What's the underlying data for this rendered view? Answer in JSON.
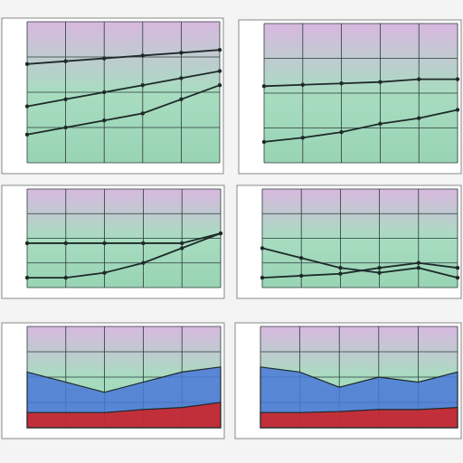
{
  "chart_data": [
    {
      "type": "line",
      "categories": [
        null,
        null,
        null,
        null,
        null,
        null
      ],
      "ylim": [
        0,
        100
      ],
      "yticks": [
        0,
        25,
        50,
        75,
        100
      ],
      "grid": true,
      "series": [
        {
          "color": "#1e2a2a",
          "values": [
            20,
            25,
            30,
            35,
            45,
            55
          ]
        },
        {
          "color": "#1e2a2a",
          "values": [
            40,
            45,
            50,
            55,
            60,
            65
          ]
        },
        {
          "color": "#1e2a2a",
          "values": [
            70,
            72,
            74,
            76,
            78,
            80
          ]
        }
      ]
    },
    {
      "type": "line",
      "categories": [
        null,
        null,
        null,
        null,
        null,
        null
      ],
      "ylim": [
        0,
        100
      ],
      "yticks": [
        0,
        25,
        50,
        75,
        100
      ],
      "grid": true,
      "series": [
        {
          "color": "#1e2a2a",
          "values": [
            15,
            18,
            22,
            28,
            32,
            38
          ]
        },
        {
          "color": "#1e2a2a",
          "values": [
            55,
            56,
            57,
            58,
            60,
            60
          ]
        }
      ]
    },
    {
      "type": "line",
      "categories": [
        null,
        null,
        null,
        null,
        null,
        null
      ],
      "ylim": [
        0,
        100
      ],
      "yticks": [
        0,
        25,
        50,
        75,
        100
      ],
      "grid": true,
      "series": [
        {
          "color": "#1e2a2a",
          "values": [
            45,
            45,
            45,
            45,
            45,
            55
          ]
        },
        {
          "color": "#1e2a2a",
          "values": [
            10,
            10,
            15,
            25,
            40,
            55
          ]
        }
      ]
    },
    {
      "type": "line",
      "categories": [
        null,
        null,
        null,
        null,
        null,
        null
      ],
      "ylim": [
        0,
        100
      ],
      "yticks": [
        0,
        25,
        50,
        75,
        100
      ],
      "grid": true,
      "series": [
        {
          "color": "#1e2a2a",
          "values": [
            40,
            30,
            20,
            15,
            20,
            10
          ]
        },
        {
          "color": "#1e2a2a",
          "values": [
            10,
            12,
            14,
            20,
            25,
            20
          ]
        }
      ]
    },
    {
      "type": "area",
      "categories": [
        null,
        null,
        null,
        null,
        null,
        null
      ],
      "ylim": [
        0,
        100
      ],
      "yticks": [
        0,
        25,
        50,
        75,
        100
      ],
      "grid": true,
      "series": [
        {
          "color": "#4a78d8",
          "values": [
            55,
            45,
            35,
            45,
            55,
            60
          ]
        },
        {
          "color": "#d42020",
          "values": [
            15,
            15,
            15,
            18,
            20,
            25
          ]
        }
      ]
    },
    {
      "type": "area",
      "categories": [
        null,
        null,
        null,
        null,
        null,
        null
      ],
      "ylim": [
        0,
        100
      ],
      "yticks": [
        0,
        25,
        50,
        75,
        100
      ],
      "grid": true,
      "series": [
        {
          "color": "#4a78d8",
          "values": [
            60,
            55,
            40,
            50,
            45,
            55
          ]
        },
        {
          "color": "#d42020",
          "values": [
            15,
            15,
            16,
            18,
            18,
            20
          ]
        }
      ]
    }
  ]
}
